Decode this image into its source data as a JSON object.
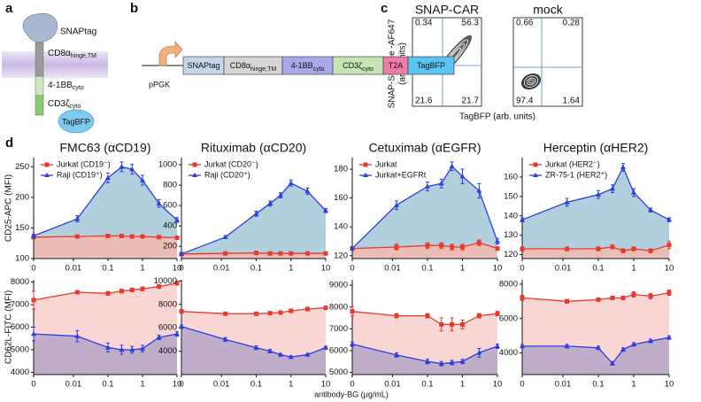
{
  "panel_labels": [
    "a",
    "b",
    "c",
    "d"
  ],
  "diagram_a": {
    "snaptag": "SNAPtag",
    "cd8": {
      "main": "CD8α",
      "sub": "hinge,TM"
    },
    "bb": {
      "main": "4-1BB",
      "sub": "cyto"
    },
    "cd3": {
      "main": "CD3ζ",
      "sub": "cyto"
    },
    "tagbfp": "TagBFP"
  },
  "construct_b": {
    "promoter": "pPGK",
    "segments": [
      {
        "main": "SNAPtag",
        "color": "#c6d5ec"
      },
      {
        "main": "CD8α",
        "sub": "hinge,TM",
        "color": "#d6d6d6"
      },
      {
        "main": "4-1BB",
        "sub": "cyto",
        "color": "#aaa8ea"
      },
      {
        "main": "CD3ζ",
        "sub": "cyto",
        "color": "#c5e6b4"
      },
      {
        "main": "T2A",
        "color": "#f07aa8"
      },
      {
        "main": "TagBFP",
        "color": "#5cc4f2"
      }
    ]
  },
  "flow_c": {
    "y_label": [
      "SNAP-Surface -AF647",
      "(arb. units)"
    ],
    "x_label": "TagBFP (arb. units)",
    "plots": [
      {
        "title": "SNAP-CAR",
        "quadrants": [
          0.34,
          56.3,
          21.6,
          21.7
        ]
      },
      {
        "title": "mock",
        "quadrants": [
          0.66,
          0.28,
          97.4,
          1.64
        ]
      }
    ]
  },
  "shared_x_label": "antibody-BG (μg/mL)",
  "chart_data": [
    {
      "type": "line",
      "title": "FMC63 (αCD19)",
      "y_label": "CD25-APC (MFI)",
      "x": [
        0,
        0.013,
        0.1,
        0.25,
        0.5,
        1,
        3,
        10
      ],
      "xlim": [
        0,
        10
      ],
      "xticks": [
        0,
        0.01,
        0.1,
        1,
        10
      ],
      "xscale": "log",
      "ylim": [
        100,
        265
      ],
      "yticks": [
        100,
        150,
        200,
        250
      ],
      "legend": "upper left",
      "series": [
        {
          "name": "Jurkat (CD19⁻)",
          "color": "#e8392d",
          "area_color": "#f3b9b3",
          "marker": "square",
          "values": [
            135,
            136,
            137,
            137,
            136,
            136,
            135,
            134
          ],
          "errors": [
            3,
            2,
            2,
            2,
            2,
            2,
            2,
            2
          ]
        },
        {
          "name": "Raji (CD19⁺)",
          "color": "#2b3fe0",
          "area_color": "#a9cad9",
          "marker": "triangle",
          "values": [
            137,
            165,
            232,
            250,
            246,
            228,
            190,
            163
          ],
          "errors": [
            3,
            5,
            8,
            8,
            8,
            8,
            6,
            4
          ]
        }
      ]
    },
    {
      "type": "line",
      "title": "Rituximab (αCD20)",
      "x": [
        0,
        0.013,
        0.1,
        0.25,
        0.5,
        1,
        3,
        10
      ],
      "xlim": [
        0,
        10
      ],
      "xticks": [
        0,
        0.01,
        0.1,
        1,
        10
      ],
      "xscale": "log",
      "ylim": [
        80,
        1070
      ],
      "yticks": [
        200,
        400,
        600,
        800,
        1000
      ],
      "legend": "upper left",
      "series": [
        {
          "name": "Jurkat (CD20⁻)",
          "color": "#e8392d",
          "area_color": "#f3b9b3",
          "marker": "square",
          "values": [
            125,
            130,
            135,
            130,
            130,
            130,
            130,
            130
          ],
          "errors": [
            10,
            10,
            10,
            10,
            10,
            10,
            10,
            10
          ]
        },
        {
          "name": "Raji (CD20⁺)",
          "color": "#2b3fe0",
          "area_color": "#a9cad9",
          "marker": "triangle",
          "values": [
            125,
            290,
            520,
            620,
            700,
            820,
            740,
            550
          ],
          "errors": [
            10,
            15,
            25,
            25,
            25,
            30,
            30,
            20
          ]
        }
      ]
    },
    {
      "type": "line",
      "title": "Cetuximab (αEGFR)",
      "x": [
        0,
        0.013,
        0.1,
        0.25,
        0.5,
        1,
        3,
        10
      ],
      "xlim": [
        0,
        10
      ],
      "xticks": [
        0,
        0.01,
        0.1,
        1,
        10
      ],
      "xscale": "log",
      "ylim": [
        118,
        188
      ],
      "yticks": [
        120,
        140,
        160,
        180
      ],
      "legend": "upper left",
      "series": [
        {
          "name": "Jurkat",
          "color": "#e8392d",
          "area_color": "#f3b9b3",
          "marker": "square",
          "values": [
            125,
            126,
            127,
            127,
            126,
            126,
            129,
            125
          ],
          "errors": [
            1,
            2,
            2,
            2,
            2,
            2,
            2,
            1
          ]
        },
        {
          "name": "Jurkat+EGFRt",
          "color": "#2b3fe0",
          "area_color": "#a9cad9",
          "marker": "triangle",
          "values": [
            125,
            155,
            168,
            170,
            182,
            175,
            165,
            130
          ],
          "errors": [
            1,
            3,
            3,
            3,
            3,
            5,
            5,
            2
          ]
        }
      ]
    },
    {
      "type": "line",
      "title": "Herceptin (αHER2)",
      "x": [
        0,
        0.013,
        0.1,
        0.25,
        0.5,
        1,
        3,
        10
      ],
      "xlim": [
        0,
        10
      ],
      "xticks": [
        0,
        0.01,
        0.1,
        1,
        10
      ],
      "xscale": "log",
      "ylim": [
        118,
        170
      ],
      "yticks": [
        120,
        130,
        140,
        150,
        160
      ],
      "legend": "upper left",
      "series": [
        {
          "name": "Jurkat (HER2⁻)",
          "color": "#e8392d",
          "area_color": "#f3b9b3",
          "marker": "square",
          "values": [
            123,
            123,
            123,
            124,
            122,
            123,
            122,
            125
          ],
          "errors": [
            1,
            1,
            1,
            1,
            1,
            1,
            1,
            2
          ]
        },
        {
          "name": "ZR-75-1 (HER2⁺)",
          "color": "#2b3fe0",
          "area_color": "#a9cad9",
          "marker": "triangle",
          "values": [
            138,
            147,
            151,
            154,
            165,
            152,
            143,
            138
          ],
          "errors": [
            1,
            2,
            2,
            2,
            2,
            2,
            1,
            1
          ]
        }
      ]
    },
    {
      "type": "line",
      "y_label": "CD62L-FITC (MFI)",
      "x": [
        0,
        0.013,
        0.1,
        0.25,
        0.5,
        1,
        3,
        10
      ],
      "xlim": [
        0,
        10
      ],
      "xticks": [
        0,
        0.01,
        0.1,
        1,
        10
      ],
      "xscale": "log",
      "ylim": [
        3900,
        8100
      ],
      "yticks": [
        4000,
        5000,
        6000,
        7000,
        8000
      ],
      "series": [
        {
          "color": "#e8392d",
          "area_color": "#f8d2ce",
          "marker": "square",
          "values": [
            7200,
            7550,
            7500,
            7600,
            7650,
            7700,
            7800,
            7950
          ],
          "errors": [
            400,
            50,
            80,
            80,
            80,
            80,
            80,
            80
          ]
        },
        {
          "color": "#2b3fe0",
          "area_color": "#b8a9c8",
          "marker": "triangle",
          "values": [
            5700,
            5600,
            5100,
            5000,
            5000,
            5050,
            5550,
            5700
          ],
          "errors": [
            300,
            250,
            200,
            200,
            150,
            150,
            100,
            100
          ]
        }
      ]
    },
    {
      "type": "line",
      "x": [
        0,
        0.013,
        0.1,
        0.25,
        0.5,
        1,
        3,
        10
      ],
      "xlim": [
        0,
        10
      ],
      "xticks": [
        0,
        0.01,
        0.1,
        1,
        10
      ],
      "xscale": "log",
      "ylim": [
        2000,
        10100
      ],
      "yticks": [
        4000,
        6000,
        8000,
        10000
      ],
      "series": [
        {
          "color": "#e8392d",
          "area_color": "#f8d2ce",
          "marker": "square",
          "values": [
            7400,
            7200,
            7200,
            7250,
            7300,
            7450,
            7600,
            7700
          ],
          "errors": [
            150,
            100,
            100,
            100,
            100,
            100,
            100,
            100
          ]
        },
        {
          "color": "#2b3fe0",
          "area_color": "#b8a9c8",
          "marker": "triangle",
          "values": [
            6100,
            5000,
            4300,
            4000,
            3700,
            3500,
            3700,
            4300
          ],
          "errors": [
            150,
            150,
            150,
            150,
            100,
            100,
            100,
            100
          ]
        }
      ]
    },
    {
      "type": "line",
      "x": [
        0,
        0.013,
        0.1,
        0.25,
        0.5,
        1,
        3,
        10
      ],
      "xlim": [
        0,
        10
      ],
      "xticks": [
        0,
        0.01,
        0.1,
        1,
        10
      ],
      "xscale": "log",
      "ylim": [
        4900,
        9250
      ],
      "yticks": [
        5000,
        6000,
        7000,
        8000,
        9000
      ],
      "series": [
        {
          "color": "#e8392d",
          "area_color": "#f8d2ce",
          "marker": "square",
          "values": [
            7800,
            7600,
            7600,
            7200,
            7200,
            7200,
            7600,
            7700
          ],
          "errors": [
            200,
            100,
            100,
            300,
            300,
            200,
            100,
            100
          ]
        },
        {
          "color": "#2b3fe0",
          "area_color": "#b8a9c8",
          "marker": "triangle",
          "values": [
            6300,
            5800,
            5500,
            5400,
            5450,
            5500,
            5900,
            6200
          ],
          "errors": [
            100,
            100,
            100,
            100,
            100,
            100,
            200,
            100
          ]
        }
      ]
    },
    {
      "type": "line",
      "x": [
        0,
        0.013,
        0.1,
        0.25,
        0.5,
        1,
        3,
        10
      ],
      "xlim": [
        0,
        10
      ],
      "xticks": [
        0,
        0.01,
        0.1,
        1,
        10
      ],
      "xscale": "log",
      "ylim": [
        2750,
        8250
      ],
      "yticks": [
        4000,
        6000,
        8000
      ],
      "series": [
        {
          "color": "#e8392d",
          "area_color": "#f8d2ce",
          "marker": "square",
          "values": [
            7200,
            7000,
            7100,
            7200,
            7200,
            7400,
            7300,
            7500
          ],
          "errors": [
            150,
            100,
            100,
            100,
            100,
            150,
            150,
            150
          ]
        },
        {
          "color": "#2b3fe0",
          "area_color": "#b8a9c8",
          "marker": "triangle",
          "values": [
            4400,
            4400,
            4300,
            3400,
            4200,
            4500,
            4700,
            4900
          ],
          "errors": [
            100,
            100,
            100,
            100,
            100,
            100,
            100,
            100
          ]
        }
      ]
    }
  ]
}
